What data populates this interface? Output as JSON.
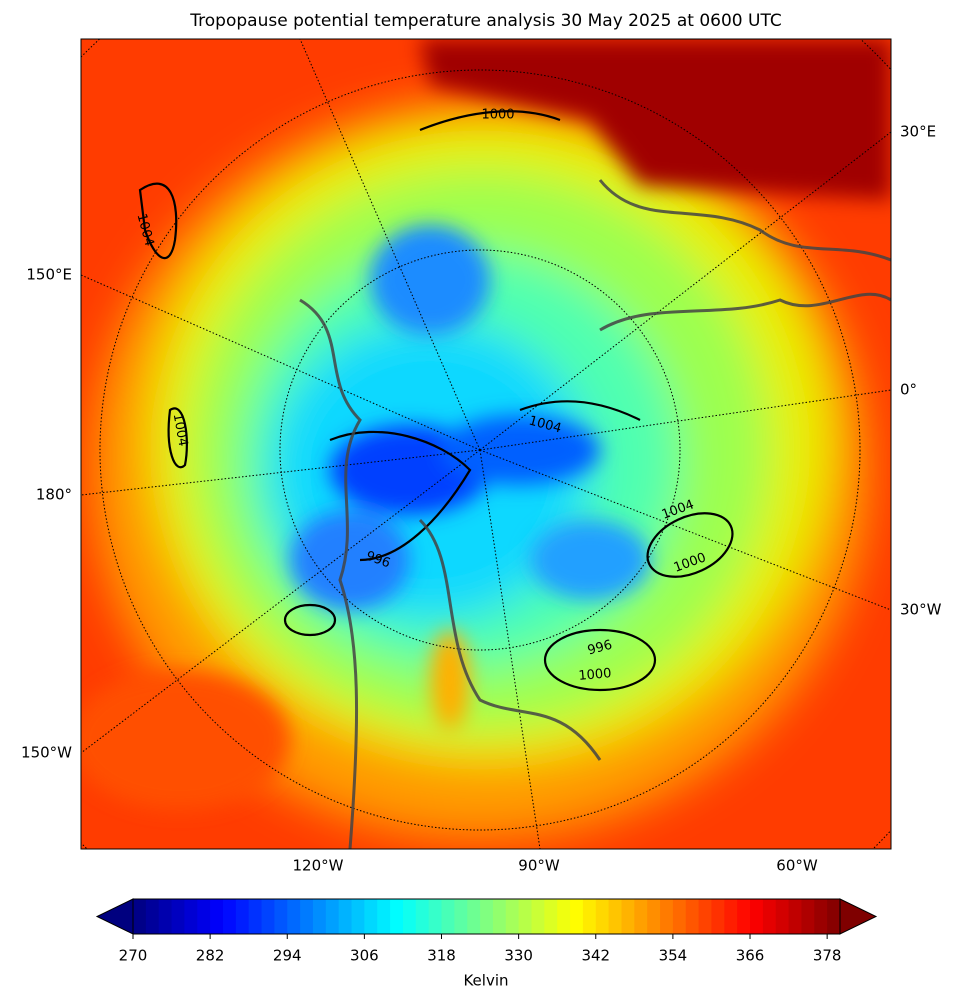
{
  "map": {
    "title": "Tropopause potential temperature analysis 30 May 2025 at 0600 UTC",
    "right_labels": [
      "30°E",
      "0°",
      "30°W"
    ],
    "left_labels": [
      "150°E",
      "180°",
      "150°W"
    ],
    "bottom_labels": [
      "120°W",
      "90°W",
      "60°W"
    ],
    "contour_labels": [
      "1000",
      "1004",
      "1004",
      "1004",
      "1004",
      "1000",
      "996",
      "996",
      "1000"
    ]
  },
  "colorbar": {
    "label": "Kelvin",
    "lim": [
      270,
      380
    ],
    "ticks": [
      270,
      282,
      294,
      306,
      318,
      330,
      342,
      354,
      366,
      378
    ],
    "colors": [
      "#00007f",
      "#0000ff",
      "#0080ff",
      "#00ffff",
      "#80ff80",
      "#ffff00",
      "#ff8000",
      "#ff0000",
      "#7f0000"
    ]
  }
}
